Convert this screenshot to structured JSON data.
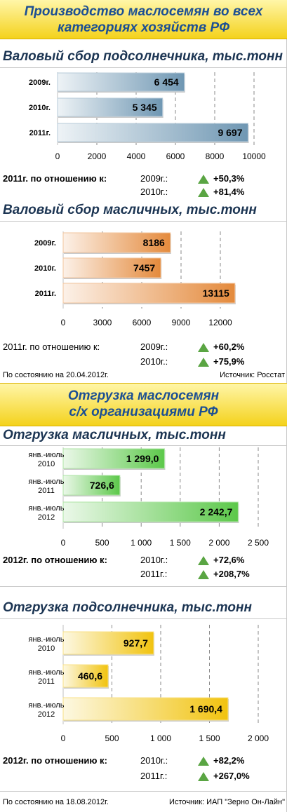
{
  "banner1": {
    "line1": "Производство маслосемян во всех",
    "line2": "категориях хозяйств РФ"
  },
  "banner2": {
    "line1": "Отгрузка маслосемян",
    "line2": "с/х организациями РФ"
  },
  "sections": [
    {
      "title": "Валовый сбор подсолнечника, тыс.тонн",
      "cmp_label": "2011г. по отношению к:",
      "cmp": [
        {
          "year": "2009г.:",
          "pct": "+50,3%"
        },
        {
          "year": "2010г.:",
          "pct": "+81,4%"
        }
      ]
    },
    {
      "title": "Валовый сбор масличных, тыс.тонн",
      "cmp_label": "2011г. по отношению к:",
      "cmp": [
        {
          "year": "2009г.:",
          "pct": "+60,2%"
        },
        {
          "year": "2010г.:",
          "pct": "+75,9%"
        }
      ]
    },
    {
      "title": "Отгрузка масличных, тыс.тонн",
      "cmp_label": "2012г. по отношению к:",
      "cmp": [
        {
          "year": "2010г.:",
          "pct": "+72,6%"
        },
        {
          "year": "2011г.:",
          "pct": "+208,7%"
        }
      ]
    },
    {
      "title": "Отгрузка подсолнечника, тыс.тонн",
      "cmp_label": "2012г. по отношению к:",
      "cmp": [
        {
          "year": "2010г.:",
          "pct": "+82,2%"
        },
        {
          "year": "2011г.:",
          "pct": "+267,0%"
        }
      ]
    }
  ],
  "footer1": {
    "left": "По состоянию на 20.04.2012г.",
    "right": "Источник: Росстат"
  },
  "footer2": {
    "left": "По состоянию на 18.08.2012г.",
    "right": "Источник: ИАП \"Зерно Он-Лайн\""
  },
  "colors": {
    "blue": "#6f97b3",
    "orange": "#e48a3c",
    "green": "#5cc84a",
    "yellow": "#f1c30f",
    "triangle": "#5aa543"
  },
  "chart_data": [
    {
      "type": "bar",
      "orientation": "horizontal",
      "title": "Валовый сбор подсолнечника, тыс.тонн",
      "categories": [
        "2009г.",
        "2010г.",
        "2011г."
      ],
      "values": [
        6454,
        5345,
        9697
      ],
      "value_labels": [
        "6 454",
        "5 345",
        "9 697"
      ],
      "xlim": [
        0,
        10000
      ],
      "xticks": [
        0,
        2000,
        4000,
        6000,
        8000,
        10000
      ],
      "xtick_labels": [
        "0",
        "2000",
        "4000",
        "6000",
        "8000",
        "10000"
      ],
      "color": "#6f97b3",
      "grid": true
    },
    {
      "type": "bar",
      "orientation": "horizontal",
      "title": "Валовый сбор масличных, тыс.тонн",
      "categories": [
        "2009г.",
        "2010г.",
        "2011г."
      ],
      "values": [
        8186,
        7457,
        13115
      ],
      "value_labels": [
        "8186",
        "7457",
        "13115"
      ],
      "xlim": [
        0,
        15000
      ],
      "xticks": [
        0,
        3000,
        6000,
        9000,
        12000
      ],
      "xtick_labels": [
        "0",
        "3000",
        "6000",
        "9000",
        "12000"
      ],
      "color": "#e48a3c",
      "grid": true
    },
    {
      "type": "bar",
      "orientation": "horizontal",
      "title": "Отгрузка масличных, тыс.тонн",
      "categories": [
        [
          "янв.-июль",
          "2010"
        ],
        [
          "янв.-июль",
          "2011"
        ],
        [
          "янв.-июль",
          "2012"
        ]
      ],
      "values": [
        1299.0,
        726.6,
        2242.7
      ],
      "value_labels": [
        "1 299,0",
        "726,6",
        "2 242,7"
      ],
      "xlim": [
        0,
        2500
      ],
      "xticks": [
        0,
        500,
        1000,
        1500,
        2000,
        2500
      ],
      "xtick_labels": [
        "0",
        "500",
        "1 000",
        "1 500",
        "2 000",
        "2 500"
      ],
      "color": "#5cc84a",
      "grid": true
    },
    {
      "type": "bar",
      "orientation": "horizontal",
      "title": "Отгрузка подсолнечника, тыс.тонн",
      "categories": [
        [
          "янв.-июль",
          "2010"
        ],
        [
          "янв.-июль",
          "2011"
        ],
        [
          "янв.-июль",
          "2012"
        ]
      ],
      "values": [
        927.7,
        460.6,
        1690.4
      ],
      "value_labels": [
        "927,7",
        "460,6",
        "1 690,4"
      ],
      "xlim": [
        0,
        2000
      ],
      "xticks": [
        0,
        500,
        1000,
        1500,
        2000
      ],
      "xtick_labels": [
        "0",
        "500",
        "1 000",
        "1 500",
        "2 000"
      ],
      "color": "#f1c30f",
      "grid": true
    }
  ]
}
